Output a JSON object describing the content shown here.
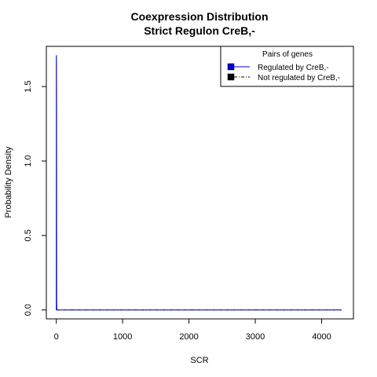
{
  "chart_data": {
    "type": "line",
    "title": "Coexpression Distribution",
    "subtitle": "Strict Regulon CreB,-",
    "xlabel": "SCR",
    "ylabel": "Probability Density",
    "xlim": [
      -150,
      4480
    ],
    "ylim": [
      -0.06,
      1.77
    ],
    "xticks": [
      0,
      1000,
      2000,
      3000,
      4000
    ],
    "xtick_labels": [
      "0",
      "1000",
      "2000",
      "3000",
      "4000"
    ],
    "yticks": [
      0.0,
      0.5,
      1.0,
      1.5
    ],
    "ytick_labels": [
      "0.0",
      "0.5",
      "1.0",
      "1.5"
    ],
    "grid": false,
    "legend": {
      "title": "Pairs of genes",
      "position": "top-right",
      "entries": [
        "Regulated by  CreB,-",
        "Not regulated by  CreB,-"
      ]
    },
    "series": [
      {
        "name": "Regulated by  CreB,-",
        "color": "#0000cc",
        "line_style": "solid",
        "x": [
          0,
          1,
          2,
          3,
          4,
          5,
          6,
          8,
          10,
          4300
        ],
        "y": [
          0.0,
          1.71,
          1.7,
          1.66,
          1.4,
          0.6,
          0.05,
          0.005,
          0.0,
          0.0
        ]
      },
      {
        "name": "Not regulated by  CreB,-",
        "color": "#000000",
        "line_style": "dashdot",
        "x": [
          0,
          4300
        ],
        "y": [
          0.0,
          0.0
        ]
      }
    ]
  }
}
